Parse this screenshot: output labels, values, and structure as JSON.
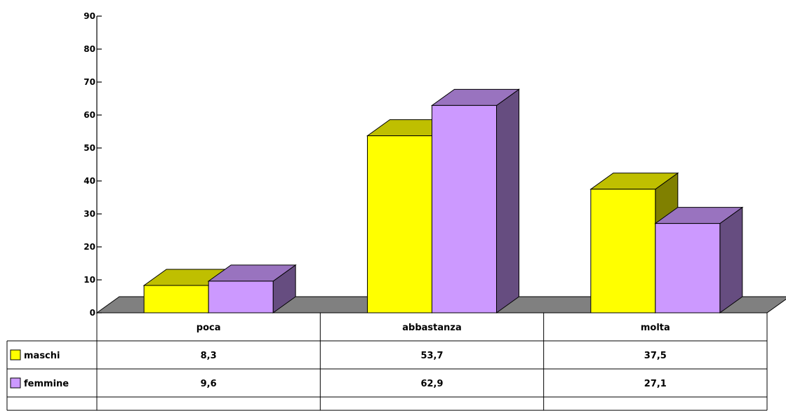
{
  "chart_data": {
    "type": "bar",
    "style": "3d-column-with-data-table",
    "categories": [
      "poca",
      "abbastanza",
      "molta"
    ],
    "series": [
      {
        "name": "maschi",
        "values": [
          8.3,
          53.7,
          37.5
        ],
        "labels": [
          "8,3",
          "53,7",
          "37,5"
        ],
        "color": "#ffff00"
      },
      {
        "name": "femmine",
        "values": [
          9.6,
          62.9,
          27.1
        ],
        "labels": [
          "9,6",
          "62,9",
          "27,1"
        ],
        "color": "#cc99ff"
      }
    ],
    "y_ticks": [
      "0",
      "10",
      "20",
      "30",
      "40",
      "50",
      "60",
      "70",
      "80",
      "90"
    ],
    "ylim": [
      0,
      90
    ],
    "title": "",
    "xlabel": "",
    "ylabel": "",
    "grid": false,
    "legend": "data-table-left",
    "floor_color": "#808080"
  }
}
